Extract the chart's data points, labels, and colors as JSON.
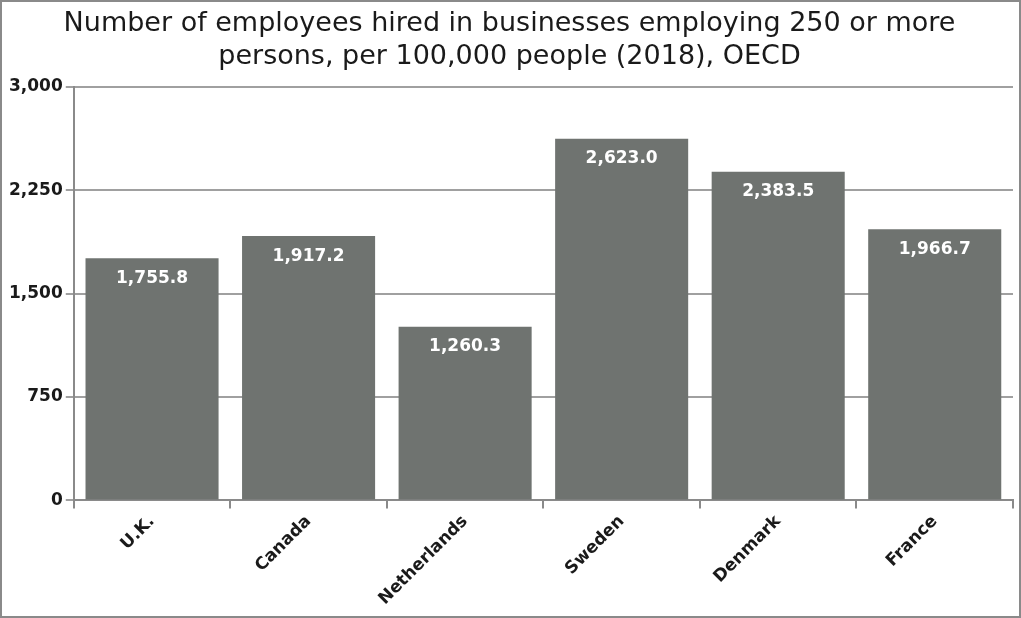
{
  "chart_data": {
    "type": "bar",
    "title": "Number of employees hired in businesses employing 250 or more persons, per 100,000 people (2018), OECD",
    "categories": [
      "U.K.",
      "Canada",
      "Netherlands",
      "Sweden",
      "Denmark",
      "France"
    ],
    "values": [
      1755.8,
      1917.2,
      1260.3,
      2623.0,
      2383.5,
      1966.7
    ],
    "color": "#6f7370",
    "ylim": [
      0,
      3000
    ],
    "yticks": [
      {
        "value": 0,
        "label": "0"
      },
      {
        "value": 750,
        "label": "750"
      },
      {
        "value": 1500,
        "label": "1,500"
      },
      {
        "value": 2250,
        "label": "2,250"
      },
      {
        "value": 3000,
        "label": "3,000"
      }
    ],
    "value_labels": [
      "1,755.8",
      "1,917.2",
      "1,260.3",
      "2,623.0",
      "2,383.5",
      "1,966.7"
    ],
    "grid": "y",
    "legend": false
  }
}
